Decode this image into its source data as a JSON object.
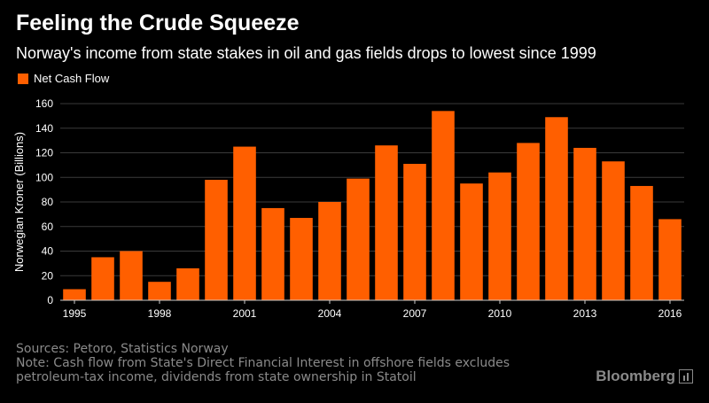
{
  "header": {
    "title": "Feeling the Crude Squeeze",
    "subtitle": "Norway's income from state stakes in oil and gas fields drops to lowest since 1999"
  },
  "legend": {
    "label": "Net Cash Flow",
    "color": "#ff5f00"
  },
  "footer": {
    "sources": "Sources: Petoro, Statistics Norway",
    "note_line1": "Note: Cash flow from State's Direct Financial Interest in offshore fields excludes",
    "note_line2": "petroleum-tax income, dividends from state ownership in Statoil"
  },
  "brand": {
    "name": "Bloomberg"
  },
  "colors": {
    "background": "#000000",
    "bar": "#ff5f00",
    "grid": "#3a3a3a",
    "text": "#ffffff",
    "muted": "#8a8a8a"
  },
  "chart_data": {
    "type": "bar",
    "title": "Feeling the Crude Squeeze",
    "subtitle": "Norway's income from state stakes in oil and gas fields drops to lowest since 1999",
    "xlabel": "",
    "ylabel": "Norwegian Kroner (Billions)",
    "ylim": [
      0,
      160
    ],
    "yticks": [
      0,
      20,
      40,
      60,
      80,
      100,
      120,
      140,
      160
    ],
    "xtick_labels": [
      "1995",
      "1998",
      "2001",
      "2004",
      "2007",
      "2010",
      "2013",
      "2016"
    ],
    "grid": true,
    "legend_position": "top-left",
    "categories": [
      "1995",
      "1996",
      "1997",
      "1998",
      "1999",
      "2000",
      "2001",
      "2002",
      "2003",
      "2004",
      "2005",
      "2006",
      "2007",
      "2008",
      "2009",
      "2010",
      "2011",
      "2012",
      "2013",
      "2014",
      "2015",
      "2016"
    ],
    "series": [
      {
        "name": "Net Cash Flow",
        "values": [
          9,
          35,
          40,
          15,
          26,
          98,
          125,
          75,
          67,
          80,
          99,
          126,
          111,
          154,
          95,
          104,
          128,
          149,
          124,
          113,
          93,
          66
        ]
      }
    ]
  }
}
